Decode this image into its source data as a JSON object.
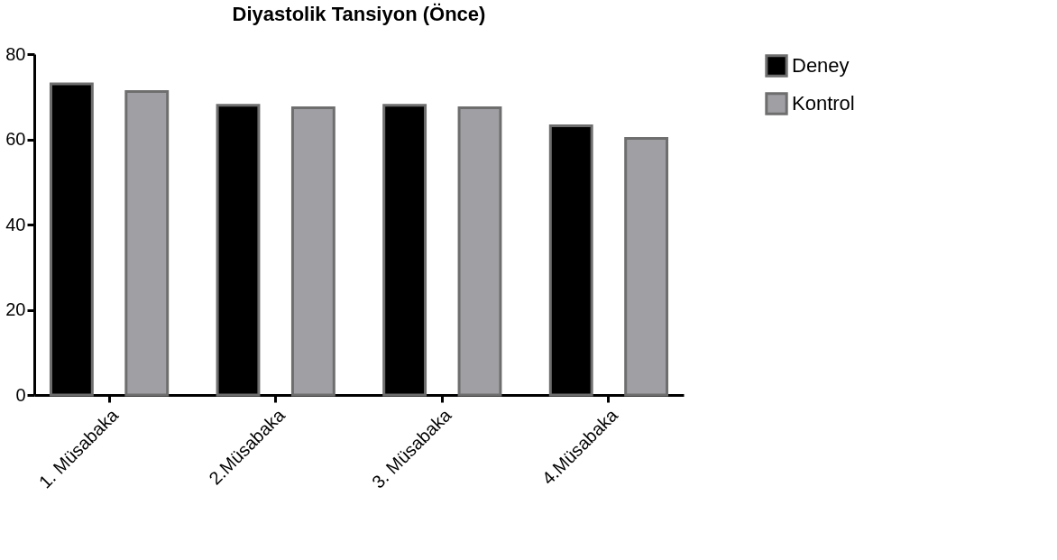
{
  "chart_data": {
    "type": "bar",
    "title": "Diyastolik Tansiyon (Önce)",
    "categories": [
      "1. Müsabaka",
      "2.Müsabaka",
      "3. Müsabaka",
      "4.Müsabaka"
    ],
    "series": [
      {
        "name": "Deney",
        "color": "#000000",
        "values": [
          73,
          68,
          68,
          63.2
        ]
      },
      {
        "name": "Kontrol",
        "color": "#a0a0a4",
        "values": [
          71.2,
          67.4,
          67.4,
          60.2
        ]
      }
    ],
    "ylim": [
      0,
      80
    ],
    "yticks": [
      0,
      20,
      40,
      60,
      80
    ],
    "grid": false,
    "legend": "top right"
  }
}
